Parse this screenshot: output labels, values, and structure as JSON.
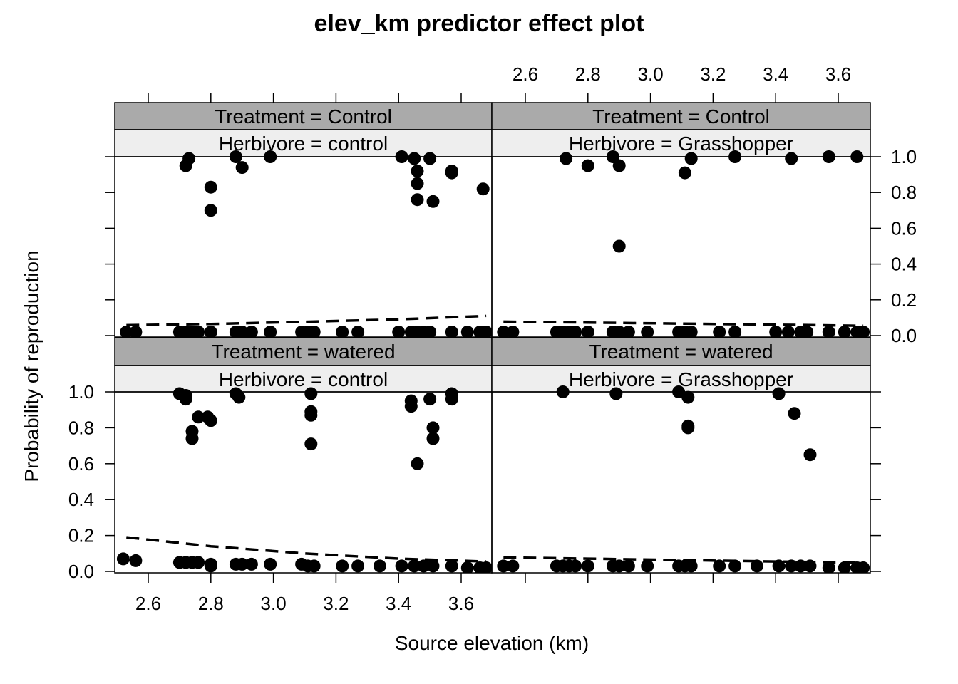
{
  "chart_data": {
    "type": "scatter",
    "title": "elev_km predictor effect plot",
    "xlabel": "Source elevation (km)",
    "ylabel": "Probability of reproduction",
    "xlim": [
      2.5,
      3.7
    ],
    "ylim": [
      0,
      1
    ],
    "x_ticks": [
      "2.6",
      "2.8",
      "3.0",
      "3.2",
      "3.4",
      "3.6"
    ],
    "y_ticks": [
      "0.0",
      "0.2",
      "0.4",
      "0.6",
      "0.8",
      "1.0"
    ],
    "grid": false,
    "panels": [
      {
        "strip_top": "Treatment = Control",
        "strip_bottom": "Herbivore = control",
        "fit_line": [
          [
            2.53,
            0.058
          ],
          [
            2.8,
            0.065
          ],
          [
            3.1,
            0.077
          ],
          [
            3.4,
            0.091
          ],
          [
            3.68,
            0.11
          ]
        ],
        "points": [
          [
            2.53,
            0.02
          ],
          [
            2.56,
            0.02
          ],
          [
            2.7,
            0.02
          ],
          [
            2.72,
            0.02
          ],
          [
            2.74,
            0.02
          ],
          [
            2.76,
            0.02
          ],
          [
            2.8,
            0.02
          ],
          [
            2.88,
            0.02
          ],
          [
            2.9,
            0.02
          ],
          [
            2.93,
            0.02
          ],
          [
            2.99,
            0.02
          ],
          [
            3.09,
            0.02
          ],
          [
            3.11,
            0.02
          ],
          [
            3.13,
            0.02
          ],
          [
            3.22,
            0.02
          ],
          [
            3.27,
            0.02
          ],
          [
            3.4,
            0.02
          ],
          [
            3.44,
            0.02
          ],
          [
            3.46,
            0.02
          ],
          [
            3.48,
            0.02
          ],
          [
            3.5,
            0.02
          ],
          [
            3.57,
            0.02
          ],
          [
            3.62,
            0.02
          ],
          [
            3.66,
            0.02
          ],
          [
            3.68,
            0.02
          ],
          [
            2.72,
            0.95
          ],
          [
            2.73,
            0.99
          ],
          [
            2.8,
            0.83
          ],
          [
            2.8,
            0.7
          ],
          [
            2.88,
            1.0
          ],
          [
            2.9,
            0.94
          ],
          [
            2.99,
            1.0
          ],
          [
            3.41,
            1.0
          ],
          [
            3.45,
            0.99
          ],
          [
            3.46,
            0.92
          ],
          [
            3.46,
            0.85
          ],
          [
            3.46,
            0.76
          ],
          [
            3.5,
            0.99
          ],
          [
            3.51,
            0.75
          ],
          [
            3.57,
            0.92
          ],
          [
            3.57,
            0.91
          ],
          [
            3.67,
            0.82
          ]
        ]
      },
      {
        "strip_top": "Treatment = Control",
        "strip_bottom": "Herbivore = Grasshopper",
        "fit_line": [
          [
            2.53,
            0.078
          ],
          [
            2.8,
            0.073
          ],
          [
            3.1,
            0.067
          ],
          [
            3.4,
            0.061
          ],
          [
            3.68,
            0.055
          ]
        ],
        "points": [
          [
            2.53,
            0.02
          ],
          [
            2.56,
            0.02
          ],
          [
            2.7,
            0.02
          ],
          [
            2.72,
            0.02
          ],
          [
            2.74,
            0.02
          ],
          [
            2.76,
            0.02
          ],
          [
            2.8,
            0.02
          ],
          [
            2.88,
            0.02
          ],
          [
            2.9,
            0.02
          ],
          [
            2.93,
            0.02
          ],
          [
            2.99,
            0.02
          ],
          [
            3.09,
            0.02
          ],
          [
            3.11,
            0.02
          ],
          [
            3.13,
            0.02
          ],
          [
            3.22,
            0.02
          ],
          [
            3.27,
            0.02
          ],
          [
            3.4,
            0.02
          ],
          [
            3.44,
            0.02
          ],
          [
            3.48,
            0.02
          ],
          [
            3.5,
            0.02
          ],
          [
            3.57,
            0.02
          ],
          [
            3.62,
            0.02
          ],
          [
            3.66,
            0.02
          ],
          [
            3.68,
            0.02
          ],
          [
            2.73,
            0.99
          ],
          [
            2.8,
            0.95
          ],
          [
            2.88,
            1.0
          ],
          [
            2.9,
            0.95
          ],
          [
            2.9,
            0.5
          ],
          [
            3.11,
            0.91
          ],
          [
            3.13,
            0.99
          ],
          [
            3.27,
            1.0
          ],
          [
            3.45,
            0.99
          ],
          [
            3.57,
            1.0
          ],
          [
            3.66,
            1.0
          ]
        ]
      },
      {
        "strip_top": "Treatment = watered",
        "strip_bottom": "Herbivore = control",
        "fit_line": [
          [
            2.53,
            0.19
          ],
          [
            2.8,
            0.14
          ],
          [
            3.1,
            0.1
          ],
          [
            3.4,
            0.071
          ],
          [
            3.68,
            0.055
          ]
        ],
        "points": [
          [
            2.52,
            0.07
          ],
          [
            2.56,
            0.06
          ],
          [
            2.7,
            0.05
          ],
          [
            2.72,
            0.05
          ],
          [
            2.74,
            0.05
          ],
          [
            2.76,
            0.05
          ],
          [
            2.8,
            0.04
          ],
          [
            2.8,
            0.03
          ],
          [
            2.88,
            0.04
          ],
          [
            2.9,
            0.04
          ],
          [
            2.93,
            0.04
          ],
          [
            2.99,
            0.04
          ],
          [
            3.09,
            0.04
          ],
          [
            3.11,
            0.03
          ],
          [
            3.13,
            0.03
          ],
          [
            3.22,
            0.03
          ],
          [
            3.27,
            0.03
          ],
          [
            3.34,
            0.03
          ],
          [
            3.41,
            0.03
          ],
          [
            3.45,
            0.03
          ],
          [
            3.48,
            0.03
          ],
          [
            3.51,
            0.03
          ],
          [
            3.57,
            0.03
          ],
          [
            3.62,
            0.02
          ],
          [
            3.66,
            0.02
          ],
          [
            3.68,
            0.02
          ],
          [
            2.7,
            0.99
          ],
          [
            2.72,
            0.98
          ],
          [
            2.72,
            0.96
          ],
          [
            2.74,
            0.78
          ],
          [
            2.74,
            0.74
          ],
          [
            2.76,
            0.86
          ],
          [
            2.79,
            0.86
          ],
          [
            2.8,
            0.84
          ],
          [
            2.88,
            0.99
          ],
          [
            2.89,
            0.97
          ],
          [
            3.12,
            0.99
          ],
          [
            3.12,
            0.89
          ],
          [
            3.12,
            0.87
          ],
          [
            3.12,
            0.71
          ],
          [
            3.44,
            0.95
          ],
          [
            3.44,
            0.92
          ],
          [
            3.46,
            0.6
          ],
          [
            3.5,
            0.96
          ],
          [
            3.51,
            0.8
          ],
          [
            3.51,
            0.74
          ],
          [
            3.57,
            0.99
          ],
          [
            3.57,
            0.96
          ]
        ]
      },
      {
        "strip_top": "Treatment = watered",
        "strip_bottom": "Herbivore = Grasshopper",
        "fit_line": [
          [
            2.53,
            0.078
          ],
          [
            2.8,
            0.071
          ],
          [
            3.1,
            0.063
          ],
          [
            3.4,
            0.055
          ],
          [
            3.68,
            0.048
          ]
        ],
        "points": [
          [
            2.53,
            0.03
          ],
          [
            2.56,
            0.03
          ],
          [
            2.7,
            0.03
          ],
          [
            2.72,
            0.03
          ],
          [
            2.74,
            0.03
          ],
          [
            2.76,
            0.03
          ],
          [
            2.8,
            0.03
          ],
          [
            2.88,
            0.03
          ],
          [
            2.9,
            0.03
          ],
          [
            2.93,
            0.03
          ],
          [
            2.99,
            0.03
          ],
          [
            3.09,
            0.03
          ],
          [
            3.11,
            0.03
          ],
          [
            3.13,
            0.03
          ],
          [
            3.22,
            0.03
          ],
          [
            3.27,
            0.03
          ],
          [
            3.34,
            0.03
          ],
          [
            3.41,
            0.03
          ],
          [
            3.45,
            0.03
          ],
          [
            3.48,
            0.03
          ],
          [
            3.51,
            0.03
          ],
          [
            3.57,
            0.02
          ],
          [
            3.62,
            0.02
          ],
          [
            3.66,
            0.02
          ],
          [
            3.68,
            0.02
          ],
          [
            2.72,
            1.0
          ],
          [
            2.89,
            0.99
          ],
          [
            3.09,
            1.0
          ],
          [
            3.12,
            0.97
          ],
          [
            3.12,
            0.81
          ],
          [
            3.12,
            0.8
          ],
          [
            3.41,
            0.99
          ],
          [
            3.46,
            0.88
          ],
          [
            3.51,
            0.65
          ]
        ]
      }
    ]
  },
  "colors": {
    "strip_top_fill": "#aaaaaa",
    "strip_bottom_fill": "#eeeeee",
    "points": "#000000",
    "frame": "#000000"
  }
}
